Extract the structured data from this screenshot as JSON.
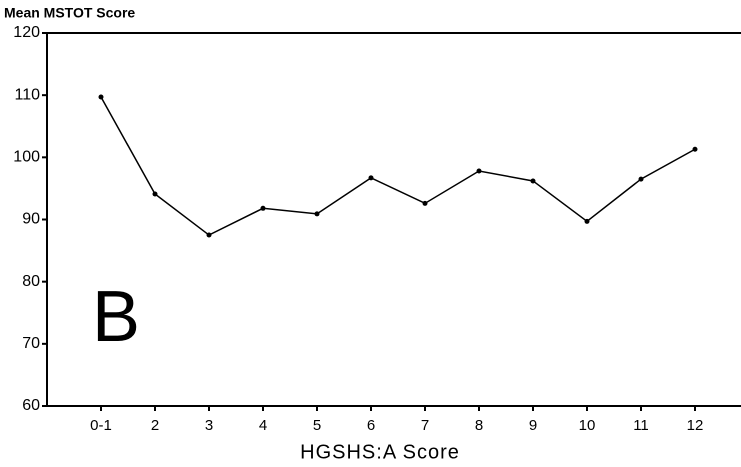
{
  "chart_data": {
    "type": "line",
    "title": "Mean MSTOT Score",
    "x_label": "HGSHS:A Score",
    "annotation": "B",
    "categories": [
      "0-1",
      "2",
      "3",
      "4",
      "5",
      "6",
      "7",
      "8",
      "9",
      "10",
      "11",
      "12"
    ],
    "series": [
      {
        "name": "Mean MSTOT",
        "color": "#000000",
        "values": [
          109.7,
          94.1,
          87.5,
          91.8,
          90.9,
          96.7,
          92.6,
          97.8,
          96.2,
          89.7,
          96.5,
          101.3
        ]
      }
    ],
    "ylim": [
      60,
      120
    ],
    "yticks": [
      60,
      70,
      80,
      90,
      100,
      110,
      120
    ],
    "grid": false
  }
}
